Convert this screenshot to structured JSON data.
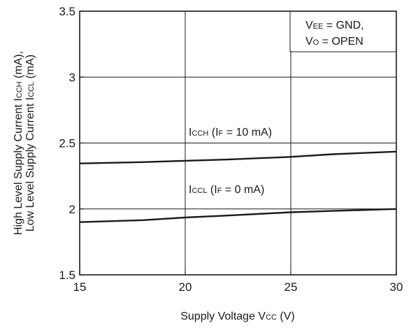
{
  "chart_data": {
    "type": "line",
    "xlabel": {
      "main": "Supply Voltage  V",
      "sub": "CC",
      "tail": " (V)"
    },
    "ylabel": {
      "line1": [
        {
          "t": "High Level Supply Current  I"
        },
        {
          "t": "CCH",
          "sub": true
        },
        {
          "t": " (mA),"
        }
      ],
      "line2": [
        {
          "t": "Low Level Supply Current  I"
        },
        {
          "t": "CCL",
          "sub": true
        },
        {
          "t": " (mA)"
        }
      ]
    },
    "xlim": [
      15,
      30
    ],
    "ylim": [
      1.5,
      3.5
    ],
    "x_ticks": [
      15,
      20,
      25,
      30
    ],
    "y_ticks": [
      1.5,
      2,
      2.5,
      3,
      3.5
    ],
    "x_tick_labels": [
      "15",
      "20",
      "25",
      "30"
    ],
    "y_tick_labels": [
      "1.5",
      "2",
      "2.5",
      "3",
      "3.5"
    ],
    "grid": true,
    "condition_box": {
      "line1": [
        {
          "t": "V"
        },
        {
          "t": "EE",
          "sub": true
        },
        {
          "t": " = GND,"
        }
      ],
      "line2": [
        {
          "t": "V"
        },
        {
          "t": "O",
          "sub": true
        },
        {
          "t": " = OPEN"
        }
      ]
    },
    "series": [
      {
        "label": [
          {
            "t": "I"
          },
          {
            "t": "CCH",
            "sub": true
          },
          {
            "t": " (I"
          },
          {
            "t": "F",
            "sub": true
          },
          {
            "t": " = 10 mA)"
          }
        ],
        "x": [
          15,
          18,
          20,
          22,
          25,
          27,
          30
        ],
        "y": [
          2.345,
          2.355,
          2.365,
          2.375,
          2.395,
          2.415,
          2.435
        ]
      },
      {
        "label": [
          {
            "t": "I"
          },
          {
            "t": "CCL",
            "sub": true
          },
          {
            "t": " (I"
          },
          {
            "t": "F",
            "sub": true
          },
          {
            "t": " = 0 mA)"
          }
        ],
        "x": [
          15,
          18,
          20,
          22,
          25,
          27,
          30
        ],
        "y": [
          1.9,
          1.915,
          1.935,
          1.95,
          1.975,
          1.985,
          2.0
        ]
      }
    ]
  }
}
